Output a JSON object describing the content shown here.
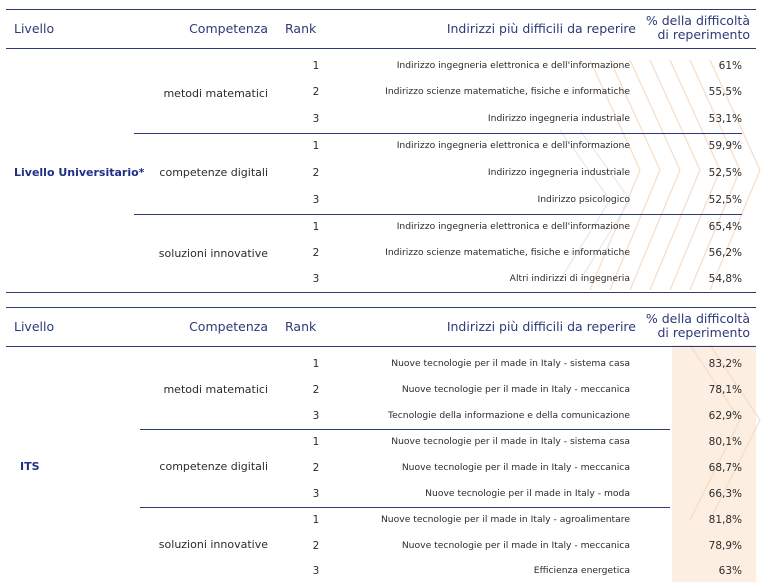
{
  "headers": {
    "livello": "Livello",
    "competenza": "Competenza",
    "rank": "Rank",
    "indirizzi": "Indirizzi più difficili da reperire",
    "pct_line1": "% della difficoltà",
    "pct_line2": "di reperimento"
  },
  "tables": [
    {
      "livello": "Livello Universitario*",
      "groups": [
        {
          "competenza": "metodi matematici",
          "rows": [
            {
              "rank": "1",
              "indirizzo": "Indirizzo ingegneria elettronica e dell'informazione",
              "pct": "61%"
            },
            {
              "rank": "2",
              "indirizzo": "Indirizzo scienze matematiche, fisiche e informatiche",
              "pct": "55,5%"
            },
            {
              "rank": "3",
              "indirizzo": "Indirizzo ingegneria industriale",
              "pct": "53,1%"
            }
          ]
        },
        {
          "competenza": "competenze digitali",
          "rows": [
            {
              "rank": "1",
              "indirizzo": "Indirizzo ingegneria elettronica e dell'informazione",
              "pct": "59,9%"
            },
            {
              "rank": "2",
              "indirizzo": "Indirizzo ingegneria industriale",
              "pct": "52,5%"
            },
            {
              "rank": "3",
              "indirizzo": "Indirizzo psicologico",
              "pct": "52,5%"
            }
          ]
        },
        {
          "competenza": "soluzioni innovative",
          "rows": [
            {
              "rank": "1",
              "indirizzo": "Indirizzo ingegneria elettronica e dell'informazione",
              "pct": "65,4%"
            },
            {
              "rank": "2",
              "indirizzo": "Indirizzo scienze matematiche, fisiche e informatiche",
              "pct": "56,2%"
            },
            {
              "rank": "3",
              "indirizzo": "Altri indirizzi di ingegneria",
              "pct": "54,8%"
            }
          ]
        }
      ]
    },
    {
      "livello": "ITS",
      "groups": [
        {
          "competenza": "metodi matematici",
          "rows": [
            {
              "rank": "1",
              "indirizzo": "Nuove tecnologie per il made in Italy - sistema casa",
              "pct": "83,2%"
            },
            {
              "rank": "2",
              "indirizzo": "Nuove tecnologie per il made in Italy - meccanica",
              "pct": "78,1%"
            },
            {
              "rank": "3",
              "indirizzo": "Tecnologie della informazione e della comunicazione",
              "pct": "62,9%"
            }
          ]
        },
        {
          "competenza": "competenze digitali",
          "rows": [
            {
              "rank": "1",
              "indirizzo": "Nuove tecnologie per il made in Italy - sistema casa",
              "pct": "80,1%"
            },
            {
              "rank": "2",
              "indirizzo": "Nuove tecnologie per il made in Italy - meccanica",
              "pct": "68,7%"
            },
            {
              "rank": "3",
              "indirizzo": "Nuove tecnologie per il made in Italy - moda",
              "pct": "66,3%"
            }
          ]
        },
        {
          "competenza": "soluzioni innovative",
          "rows": [
            {
              "rank": "1",
              "indirizzo": "Nuove tecnologie per il made in Italy - agroalimentare",
              "pct": "81,8%"
            },
            {
              "rank": "2",
              "indirizzo": "Nuove tecnologie per il made in Italy - meccanica",
              "pct": "78,9%"
            },
            {
              "rank": "3",
              "indirizzo": "Efficienza energetica",
              "pct": "63%"
            }
          ]
        }
      ]
    }
  ]
}
